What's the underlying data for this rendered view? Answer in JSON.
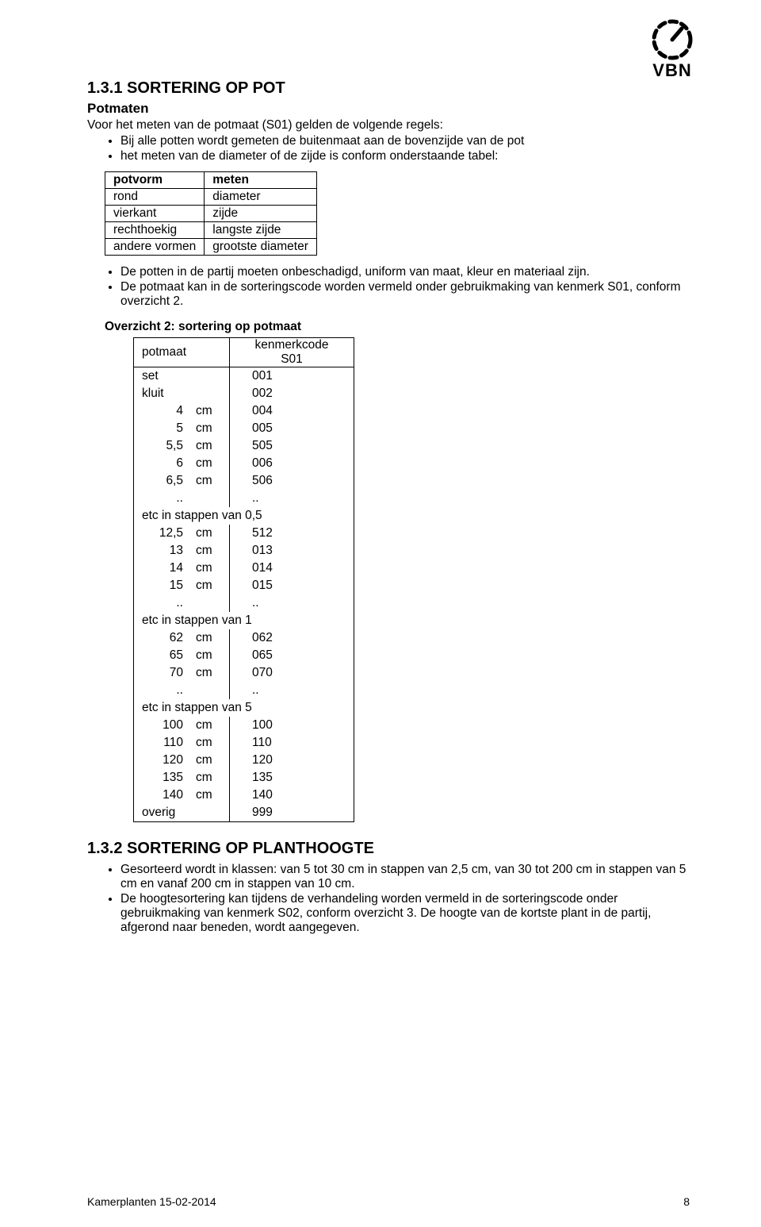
{
  "logo_text": "VBN",
  "section1_number": "1.3.1",
  "section1_title": "SORTERING OP POT",
  "subhead": "Potmaten",
  "intro": "Voor het meten van de potmaat (S01) gelden de volgende regels:",
  "bullets1": [
    "Bij alle potten wordt gemeten de buitenmaat aan de bovenzijde van de pot",
    "het meten van de diameter of de zijde is conform onderstaande tabel:"
  ],
  "potvorm_table": {
    "header": [
      "potvorm",
      "meten"
    ],
    "rows": [
      [
        "rond",
        "diameter"
      ],
      [
        "vierkant",
        "zijde"
      ],
      [
        "rechthoekig",
        "langste zijde"
      ],
      [
        "andere vormen",
        "grootste diameter"
      ]
    ]
  },
  "bullets2": [
    "De potten in de partij moeten onbeschadigd, uniform van maat, kleur en materiaal zijn.",
    "De potmaat kan in de sorteringscode worden vermeld onder gebruikmaking van kenmerk S01, conform overzicht 2."
  ],
  "overzicht_title": "Overzicht 2: sortering op potmaat",
  "potmaat_table": {
    "header_left": "potmaat",
    "header_right_line1": "kenmerkcode",
    "header_right_line2": "S01",
    "rows": [
      {
        "type": "word",
        "label": "set",
        "code": "001"
      },
      {
        "type": "word",
        "label": "kluit",
        "code": "002"
      },
      {
        "type": "cm",
        "val": "4",
        "unit": "cm",
        "code": "004"
      },
      {
        "type": "cm",
        "val": "5",
        "unit": "cm",
        "code": "005"
      },
      {
        "type": "cm",
        "val": "5,5",
        "unit": "cm",
        "code": "505"
      },
      {
        "type": "cm",
        "val": "6",
        "unit": "cm",
        "code": "006"
      },
      {
        "type": "cm",
        "val": "6,5",
        "unit": "cm",
        "code": "506"
      },
      {
        "type": "dots"
      },
      {
        "type": "note",
        "text": "etc in stappen van  0,5"
      },
      {
        "type": "cm",
        "val": "12,5",
        "unit": "cm",
        "code": "512"
      },
      {
        "type": "cm",
        "val": "13",
        "unit": "cm",
        "code": "013"
      },
      {
        "type": "cm",
        "val": "14",
        "unit": "cm",
        "code": "014"
      },
      {
        "type": "cm",
        "val": "15",
        "unit": "cm",
        "code": "015"
      },
      {
        "type": "dots"
      },
      {
        "type": "note",
        "text": "etc in stappen van 1"
      },
      {
        "type": "cm",
        "val": "62",
        "unit": "cm",
        "code": "062"
      },
      {
        "type": "cm",
        "val": "65",
        "unit": "cm",
        "code": "065"
      },
      {
        "type": "cm",
        "val": "70",
        "unit": "cm",
        "code": "070"
      },
      {
        "type": "dots"
      },
      {
        "type": "note",
        "text": "etc in stappen van 5"
      },
      {
        "type": "cm",
        "val": "100",
        "unit": "cm",
        "code": "100"
      },
      {
        "type": "cm",
        "val": "110",
        "unit": "cm",
        "code": "110"
      },
      {
        "type": "cm",
        "val": "120",
        "unit": "cm",
        "code": "120"
      },
      {
        "type": "cm",
        "val": "135",
        "unit": "cm",
        "code": "135"
      },
      {
        "type": "cm",
        "val": "140",
        "unit": "cm",
        "code": "140"
      },
      {
        "type": "word",
        "label": "overig",
        "code": "999",
        "last": true
      }
    ]
  },
  "section2_number": "1.3.2",
  "section2_title": "SORTERING OP PLANTHOOGTE",
  "bullets3": [
    "Gesorteerd wordt in klassen: van 5 tot 30 cm in stappen van 2,5 cm, van 30 tot 200 cm in stappen van 5 cm en vanaf 200 cm in stappen van 10 cm.",
    "De hoogtesortering kan tijdens de verhandeling worden vermeld in de sorteringscode onder gebruikmaking van kenmerk S02, conform overzicht 3. De hoogte van de kortste plant in de partij, afgerond naar beneden, wordt aangegeven."
  ],
  "footer_left": "Kamerplanten 15-02-2014",
  "footer_page": "8"
}
